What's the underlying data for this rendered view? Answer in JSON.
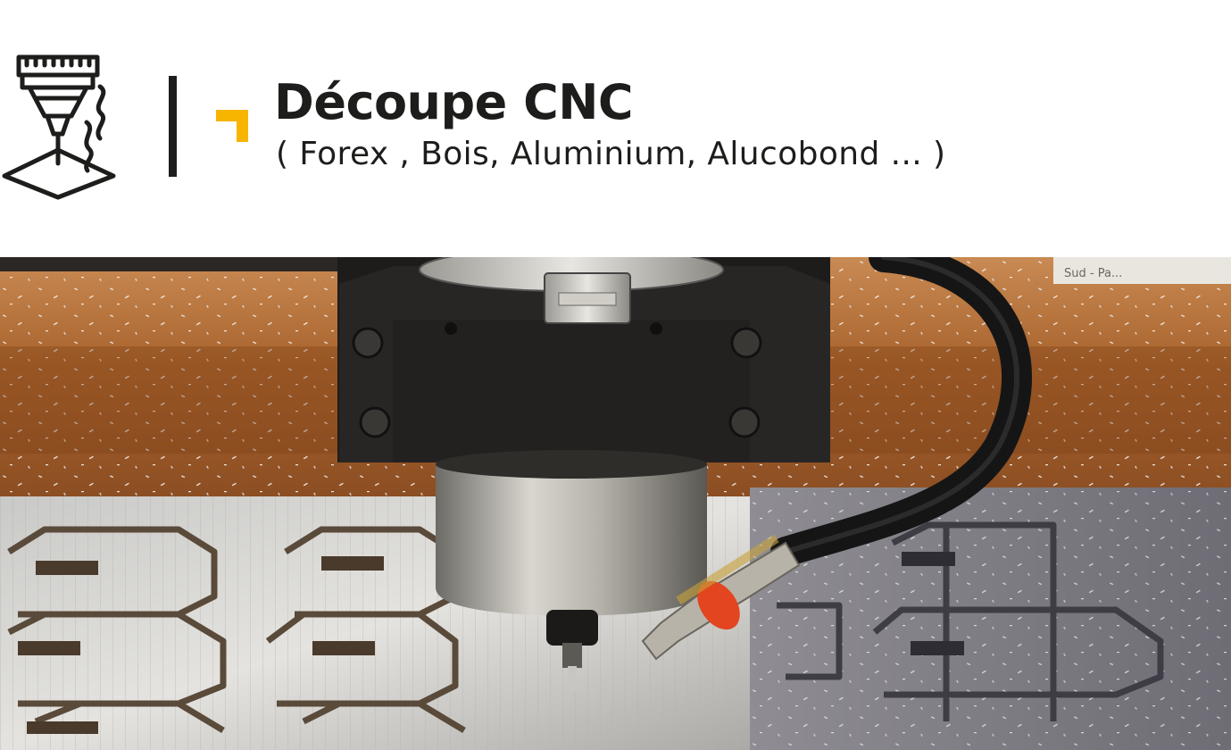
{
  "header": {
    "title": "Découpe CNC",
    "subtitle": "( Forex , Bois, Aluminium, Alucobond ... )",
    "icon": "cnc-router-icon",
    "accent_color": "#f7b500",
    "text_color": "#1d1d1b"
  },
  "photo": {
    "icon": "cnc-machining-photo",
    "label_text": "Sud - Pa..."
  }
}
